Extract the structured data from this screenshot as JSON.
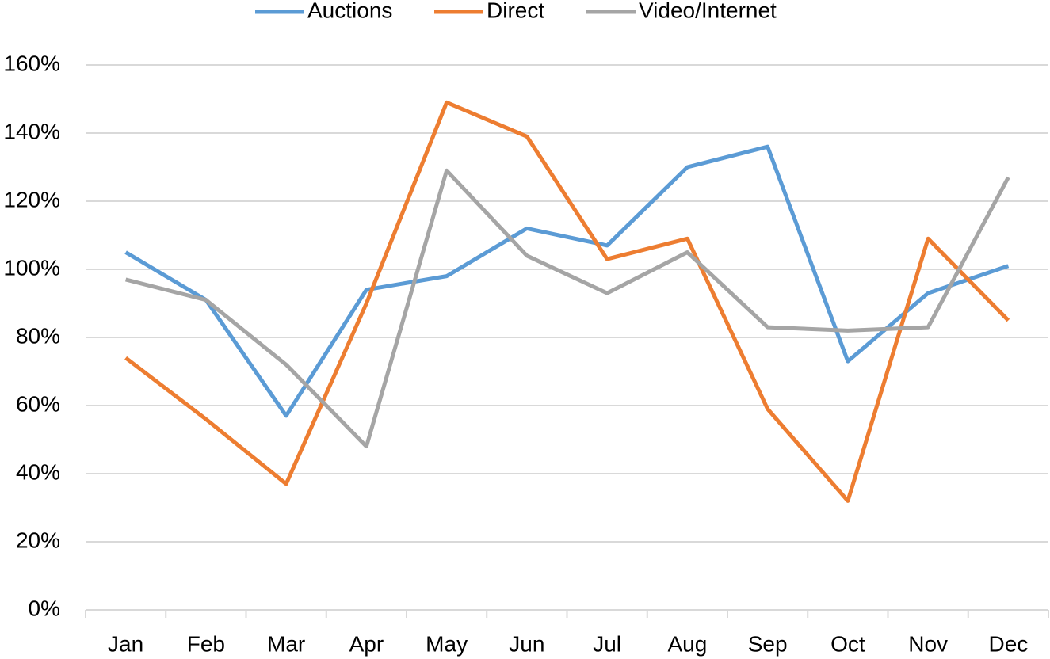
{
  "chart_data": {
    "type": "line",
    "categories": [
      "Jan",
      "Feb",
      "Mar",
      "Apr",
      "May",
      "Jun",
      "Jul",
      "Aug",
      "Sep",
      "Oct",
      "Nov",
      "Dec"
    ],
    "series": [
      {
        "name": "Auctions",
        "color": "#5b9bd5",
        "values": [
          105,
          91,
          57,
          94,
          98,
          112,
          107,
          130,
          136,
          73,
          93,
          101
        ]
      },
      {
        "name": "Direct",
        "color": "#ed7d31",
        "values": [
          74,
          56,
          37,
          90,
          149,
          139,
          103,
          109,
          59,
          32,
          109,
          85
        ]
      },
      {
        "name": "Video/Internet",
        "color": "#a5a5a5",
        "values": [
          97,
          91,
          72,
          48,
          129,
          104,
          93,
          105,
          83,
          82,
          83,
          127
        ]
      }
    ],
    "ylim": [
      0,
      160
    ],
    "yticks": [
      {
        "value": 0,
        "label": "0%"
      },
      {
        "value": 20,
        "label": "20%"
      },
      {
        "value": 40,
        "label": "40%"
      },
      {
        "value": 60,
        "label": "60%"
      },
      {
        "value": 80,
        "label": "80%"
      },
      {
        "value": 100,
        "label": "100%"
      },
      {
        "value": 120,
        "label": "120%"
      },
      {
        "value": 140,
        "label": "140%"
      },
      {
        "value": 160,
        "label": "160%"
      }
    ],
    "grid": true,
    "legend": "top"
  }
}
